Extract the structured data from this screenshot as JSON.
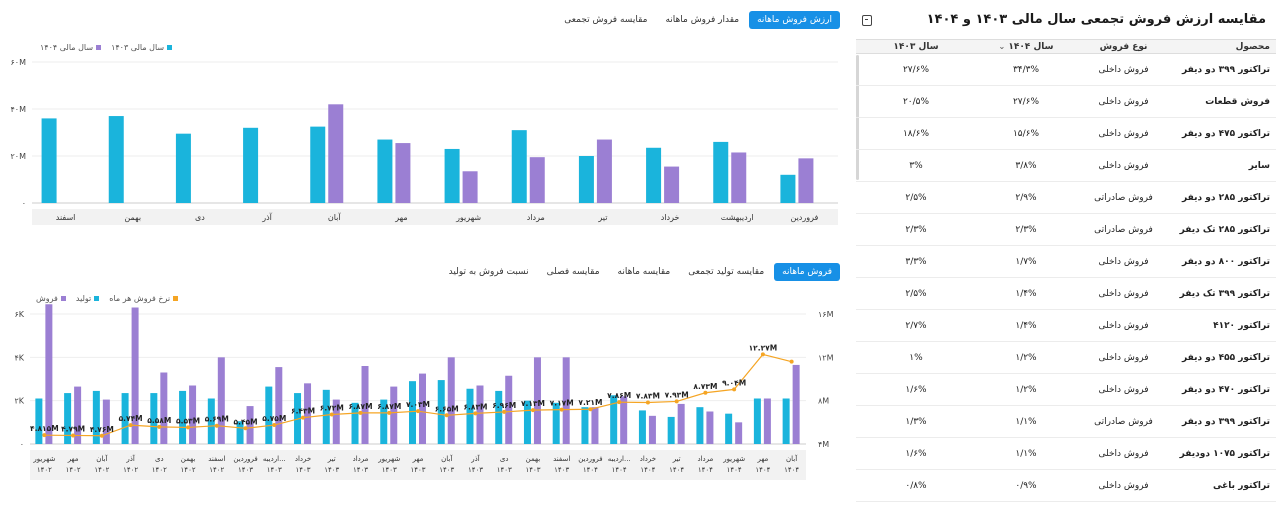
{
  "brand_colors": {
    "blue": "#1ab4dc",
    "purple": "#9b7fd3",
    "orange": "#f5a524",
    "accent": "#1790e6"
  },
  "table": {
    "title": "مقایسه ارزش فروش تجمعی سال مالی ۱۴۰۳ و ۱۴۰۴",
    "export_icon": "table-export-icon",
    "headers": {
      "product": "محصول",
      "type": "نوع فروش",
      "y1404": "سال ۱۴۰۴",
      "sort_icon": "⌄",
      "y1403": "سال ۱۴۰۳"
    },
    "rows": [
      {
        "product": "تراکتور ۳۹۹ دو دیفر",
        "type": "فروش داخلی",
        "y1404": "۳۴/۳%",
        "y1403": "۲۷/۶%"
      },
      {
        "product": "فروش قطعات",
        "type": "فروش داخلی",
        "y1404": "۲۷/۶%",
        "y1403": "۲۰/۵%"
      },
      {
        "product": "تراکتور ۴۷۵ دو دیفر",
        "type": "فروش داخلی",
        "y1404": "۱۵/۶%",
        "y1403": "۱۸/۶%"
      },
      {
        "product": "سایر",
        "type": "فروش داخلی",
        "y1404": "۳/۸%",
        "y1403": "۳%"
      },
      {
        "product": "تراکتور ۲۸۵ دو دیفر",
        "type": "فروش صادراتی",
        "y1404": "۲/۹%",
        "y1403": "۲/۵%"
      },
      {
        "product": "تراکتور ۲۸۵ تک دیفر",
        "type": "فروش صادراتی",
        "y1404": "۲/۳%",
        "y1403": "۲/۳%"
      },
      {
        "product": "تراکتور ۸۰۰ دو دیفر",
        "type": "فروش داخلی",
        "y1404": "۱/۷%",
        "y1403": "۳/۳%"
      },
      {
        "product": "تراکتور ۳۹۹ تک دیفر",
        "type": "فروش داخلی",
        "y1404": "۱/۴%",
        "y1403": "۲/۵%"
      },
      {
        "product": "تراکتور ۴۱۲۰",
        "type": "فروش داخلی",
        "y1404": "۱/۴%",
        "y1403": "۲/۷%"
      },
      {
        "product": "تراکتور ۴۵۵ دو دیفر",
        "type": "فروش داخلی",
        "y1404": "۱/۲%",
        "y1403": "۱%"
      },
      {
        "product": "تراکتور ۴۷۰ دو دیفر",
        "type": "فروش داخلی",
        "y1404": "۱/۲%",
        "y1403": "۱/۶%"
      },
      {
        "product": "تراکتور ۳۹۹ دو دیفر",
        "type": "فروش صادراتی",
        "y1404": "۱/۱%",
        "y1403": "۱/۳%"
      },
      {
        "product": "تراکتور ۱۰۷۵ دودیفر",
        "type": "فروش داخلی",
        "y1404": "۱/۱%",
        "y1403": "۱/۶%"
      },
      {
        "product": "تراکتور باغی",
        "type": "فروش داخلی",
        "y1404": "۰/۹%",
        "y1403": "۰/۸%"
      }
    ]
  },
  "top_panel": {
    "tabs": [
      {
        "label": "ارزش فروش ماهانه",
        "active": true
      },
      {
        "label": "مقدار فروش ماهانه",
        "active": false
      },
      {
        "label": "مقایسه فروش تجمعی",
        "active": false
      }
    ],
    "legend": [
      {
        "label": "سال مالی ۱۴۰۴",
        "color": "#9b7fd3"
      },
      {
        "label": "سال مالی ۱۴۰۳",
        "color": "#1ab4dc"
      }
    ]
  },
  "bottom_panel": {
    "tabs": [
      {
        "label": "فروش ماهانه",
        "active": true
      },
      {
        "label": "مقایسه تولید تجمعی",
        "active": false
      },
      {
        "label": "مقایسه ماهانه",
        "active": false
      },
      {
        "label": "مقایسه فصلی",
        "active": false
      },
      {
        "label": "نسبت فروش به تولید",
        "active": false
      }
    ],
    "legend": [
      {
        "label": "فروش",
        "color": "#9b7fd3"
      },
      {
        "label": "تولید",
        "color": "#1ab4dc"
      },
      {
        "label": "نرخ فروش هر ماه",
        "color": "#f5a524"
      }
    ]
  },
  "chart_data": [
    {
      "type": "bar",
      "categories": [
        "فروردین",
        "اردیبهشت",
        "خرداد",
        "تیر",
        "مرداد",
        "شهریور",
        "مهر",
        "آبان",
        "آذر",
        "دی",
        "بهمن",
        "اسفند"
      ],
      "series": [
        {
          "name": "سال مالی ۱۴۰۳",
          "color": "#1ab4dc",
          "values": [
            12,
            26,
            23.5,
            20,
            31,
            23,
            27,
            32.5,
            32,
            29.5,
            37,
            36
          ]
        },
        {
          "name": "سال مالی ۱۴۰۴",
          "color": "#9b7fd3",
          "values": [
            19,
            21.5,
            15.5,
            27,
            19.5,
            13.5,
            25.5,
            42,
            null,
            null,
            null,
            null
          ]
        }
      ],
      "yticks": [
        "۰",
        "۲۰M",
        "۴۰M",
        "۶۰M"
      ],
      "ylim": [
        0,
        60
      ]
    },
    {
      "type": "bar",
      "categories": [
        [
          "شهریور",
          "۱۴۰۲"
        ],
        [
          "مهر",
          "۱۴۰۲"
        ],
        [
          "آبان",
          "۱۴۰۲"
        ],
        [
          "آذر",
          "۱۴۰۲"
        ],
        [
          "دی",
          "۱۴۰۲"
        ],
        [
          "بهمن",
          "۱۴۰۲"
        ],
        [
          "اسفند",
          "۱۴۰۲"
        ],
        [
          "فروردین",
          "۱۴۰۳"
        ],
        [
          "اردیبه...",
          "۱۴۰۳"
        ],
        [
          "خرداد",
          "۱۴۰۳"
        ],
        [
          "تیر",
          "۱۴۰۳"
        ],
        [
          "مرداد",
          "۱۴۰۳"
        ],
        [
          "شهریور",
          "۱۴۰۳"
        ],
        [
          "مهر",
          "۱۴۰۳"
        ],
        [
          "آبان",
          "۱۴۰۳"
        ],
        [
          "آذر",
          "۱۴۰۳"
        ],
        [
          "دی",
          "۱۴۰۳"
        ],
        [
          "بهمن",
          "۱۴۰۳"
        ],
        [
          "اسفند",
          "۱۴۰۳"
        ],
        [
          "فروردین",
          "۱۴۰۴"
        ],
        [
          "اردیبه...",
          "۱۴۰۴"
        ],
        [
          "خرداد",
          "۱۴۰۴"
        ],
        [
          "تیر",
          "۱۴۰۴"
        ],
        [
          "مرداد",
          "۱۴۰۴"
        ],
        [
          "شهریور",
          "۱۴۰۴"
        ],
        [
          "مهر",
          "۱۴۰۴"
        ],
        [
          "آبان",
          "۱۴۰۴"
        ]
      ],
      "series": [
        {
          "name": "تولید",
          "color": "#1ab4dc",
          "axis": "left",
          "values": [
            2100,
            2350,
            2450,
            2350,
            2350,
            2450,
            2100,
            1050,
            2650,
            2350,
            2500,
            1900,
            2050,
            2900,
            2950,
            2550,
            2450,
            2000,
            1900,
            1700,
            2250,
            1550,
            1250,
            1700,
            1400,
            2100,
            2100
          ]
        },
        {
          "name": "فروش",
          "color": "#9b7fd3",
          "axis": "left",
          "values": [
            6450,
            2650,
            2050,
            6300,
            3300,
            2700,
            4000,
            1750,
            3550,
            2800,
            2050,
            3600,
            2650,
            3250,
            4000,
            2700,
            3150,
            4000,
            4000,
            1700,
            2200,
            1300,
            1850,
            1500,
            1000,
            2100,
            3650
          ]
        },
        {
          "name": "نرخ فروش هر ماه",
          "color": "#f5a524",
          "axis": "right",
          "values": [
            4.815,
            4.79,
            4.76,
            5.74,
            5.58,
            5.53,
            5.69,
            5.45,
            5.75,
            6.43,
            6.72,
            6.87,
            6.87,
            7.03,
            6.65,
            6.83,
            6.96,
            7.13,
            7.17,
            7.21,
            7.86,
            7.83,
            7.93,
            8.73,
            9.04,
            12.27,
            11.6
          ]
        }
      ],
      "point_labels": [
        "۴.۸۱۵M",
        "۴.۷۹M",
        "۴.۷۶M",
        "۵.۷۴M",
        "۵.۵۸M",
        "۵.۵۳M",
        "۵.۶۹M",
        "۵.۴۵M",
        "۵.۷۵M",
        "۶.۴۳M",
        "۶.۷۲M",
        "۶.۸۷M",
        "۶.۸۷M",
        "۷.۰۳M",
        "۶.۶۵M",
        "۶.۸۳M",
        "۶.۹۶M",
        "۷.۱۳M",
        "۷.۱۷M",
        "۷.۲۱M",
        "۷.۸۶M",
        "۷.۸۳M",
        "۷.۹۳M",
        "۸.۷۳M",
        "۹.۰۴M",
        "۱۲.۲۷M",
        ""
      ],
      "yticks_left": [
        "۰",
        "۲K",
        "۴K",
        "۶K"
      ],
      "yticks_right": [
        "۴M",
        "۸M",
        "۱۲M",
        "۱۶M"
      ],
      "ylim_left": [
        0,
        6000
      ],
      "ylim_right": [
        4,
        16
      ]
    }
  ]
}
